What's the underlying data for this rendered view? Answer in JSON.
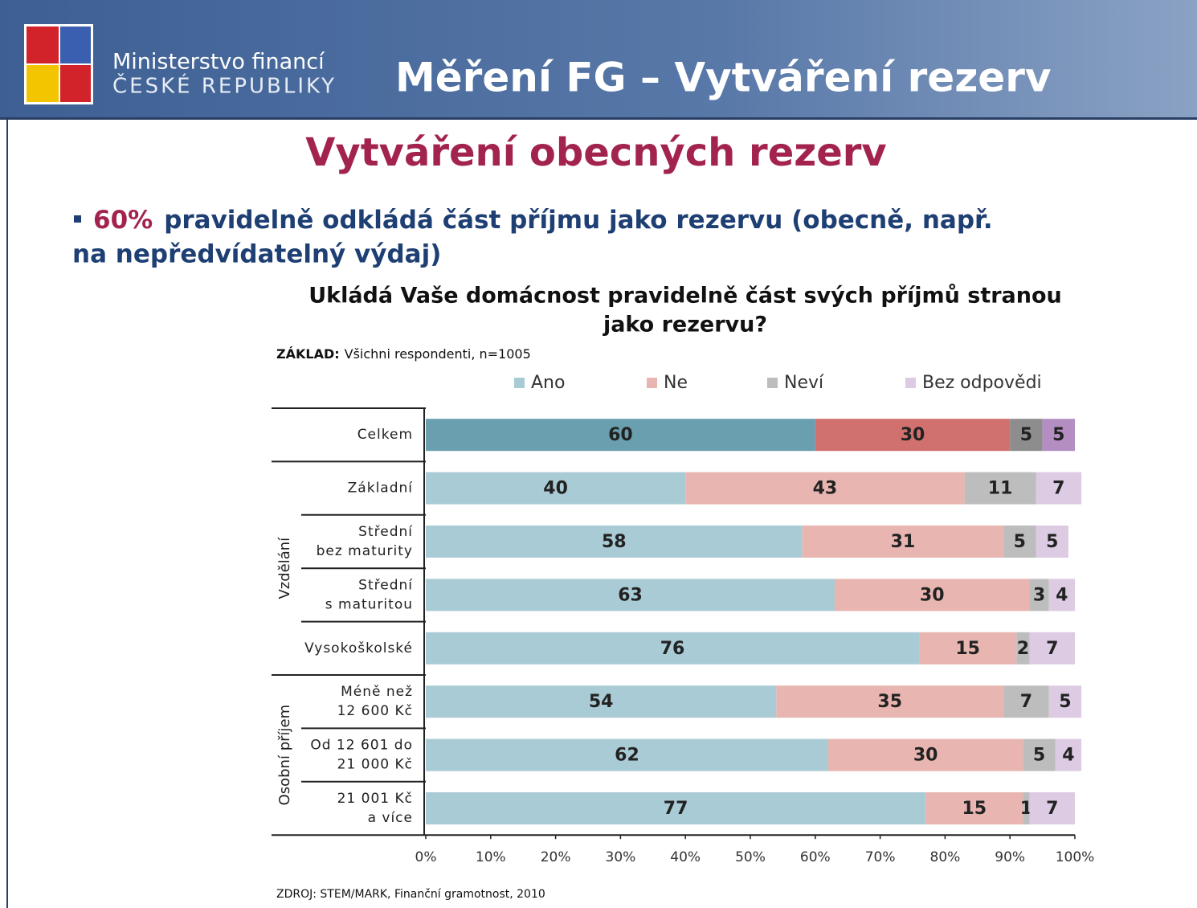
{
  "header": {
    "ministry_line1": "Ministerstvo financí",
    "ministry_line2": "ČESKÉ REPUBLIKY",
    "title": "Měření FG – Vytváření rezerv"
  },
  "slide_title": "Vytváření obecných rezerv",
  "bullet": {
    "highlight": "60%",
    "lines": [
      "pravidelně odkládá část příjmu jako rezervu (obecně, např.",
      "na nepředvídatelný výdaj)"
    ]
  },
  "source": "ZDROJ: STEM/MARK, Finanční gramotnost, 2010",
  "chart_data": {
    "type": "stacked_barh",
    "title": [
      "Ukládá Vaše domácnost pravidelně část svých příjmů stranou",
      "jako rezervu?"
    ],
    "base_label": "ZÁKLAD:",
    "base": "Všichni respondenti, n=1005",
    "category_groups": [
      {
        "label": null,
        "categories": [
          [
            "Celkem"
          ]
        ]
      },
      {
        "label": "Vzdělání",
        "categories": [
          [
            "Základní"
          ],
          [
            "Střední",
            "bez maturity"
          ],
          [
            "Střední",
            "s maturitou"
          ],
          [
            "Vysokoškolské"
          ]
        ]
      },
      {
        "label": "Osobní příjem",
        "categories": [
          [
            "Méně než",
            "12 600 Kč"
          ],
          [
            "Od 12 601 do",
            "21 000 Kč"
          ],
          [
            "21 001 Kč",
            "a více"
          ]
        ]
      }
    ],
    "emphasized": [
      true,
      false,
      false,
      false,
      false,
      false,
      false,
      false
    ],
    "series": [
      {
        "name": "Ano",
        "color": "#a9cbd5",
        "emphasis_color": "#6a9fb0",
        "values": [
          60,
          40,
          58,
          63,
          76,
          54,
          62,
          77
        ]
      },
      {
        "name": "Ne",
        "color": "#e8b5b0",
        "emphasis_color": "#d1716f",
        "values": [
          30,
          43,
          31,
          30,
          15,
          35,
          30,
          15
        ]
      },
      {
        "name": "Neví",
        "color": "#bdbdbd",
        "emphasis_color": "#8d8d8d",
        "values": [
          5,
          11,
          5,
          3,
          2,
          7,
          5,
          1
        ]
      },
      {
        "name": "Bez odpovědi",
        "color": "#dccbe2",
        "emphasis_color": "#b48ec3",
        "values": [
          5,
          7,
          5,
          4,
          7,
          5,
          4,
          7
        ]
      }
    ],
    "xlim": [
      0,
      100
    ],
    "xticks": [
      {
        "value": 0,
        "label": "0%"
      },
      {
        "value": 10,
        "label": "10%"
      },
      {
        "value": 20,
        "label": "20%"
      },
      {
        "value": 30,
        "label": "30%"
      },
      {
        "value": 40,
        "label": "40%"
      },
      {
        "value": 50,
        "label": "50%"
      },
      {
        "value": 60,
        "label": "60%"
      },
      {
        "value": 70,
        "label": "70%"
      },
      {
        "value": 80,
        "label": "80%"
      },
      {
        "value": 90,
        "label": "90%"
      },
      {
        "value": 100,
        "label": "100%"
      }
    ],
    "legend": "top"
  }
}
